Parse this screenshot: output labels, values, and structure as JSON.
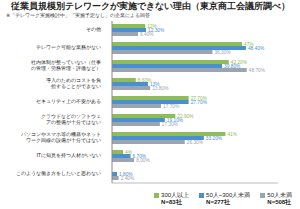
{
  "chart_data": {
    "type": "bar",
    "orientation": "horizontal",
    "title": "従業員規模別テレワークが実施できない理由（東京商工会議所調べ）",
    "subtitle": "※「テレワーク実施検討中」「実施予定なし」の企業による回答",
    "categories": [
      "その他",
      "テレワーク可能な業務がない",
      "社内体制が整っていない（仕事の管理・労務管理・評価など）",
      "導入のためのコストを負担することができない",
      "セキュリティ上の不安がある",
      "クラウドなどのソフトウェアの整備が十分ではない",
      "パソコンやスマホ等の機器やネットワーク回線の設備が十分ではない",
      "ITに知見を持つ人材がいない",
      "このような働き方をしたいと思わない"
    ],
    "series": [
      {
        "name": "300人以上",
        "sample": "N=83社",
        "color": "#8fbc5a",
        "values": [
          12,
          47,
          42.2,
          8.6,
          27.7,
          22.9,
          41,
          4,
          0
        ],
        "value_labels": [
          "12%",
          "47%",
          "42.20%",
          "8.60%",
          "27.70%",
          "22.90%",
          "41%",
          "4%",
          "0%"
        ]
      },
      {
        "name": "50人~300人未満",
        "sample": "N=277社",
        "color": "#4a8fd0",
        "values": [
          12.3,
          48.4,
          39.8,
          13,
          27.7,
          19.1,
          33.2,
          6.7,
          1.8
        ],
        "value_labels": [
          "12.30%",
          "48.40%",
          "39.80%",
          "13%",
          "27.70%",
          "19.10%",
          "33.20%",
          "6.70%",
          "1.80%"
        ]
      },
      {
        "name": "50人未満",
        "sample": "N=508社",
        "color": "#9aa5b1",
        "values": [
          9.4,
          36.3,
          48.7,
          13.8,
          17.7,
          17.3,
          26.3,
          8,
          2.4
        ],
        "value_labels": [
          "9.40%",
          "36.30%",
          "48.70%",
          "13.80%",
          "17.70%",
          "17.30%",
          "26.30%",
          "8.00%",
          "2.40%"
        ]
      }
    ],
    "xlim": [
      0,
      60
    ],
    "tick_labels": "y",
    "data_labels": true,
    "legend": "bottom",
    "grid": false
  }
}
